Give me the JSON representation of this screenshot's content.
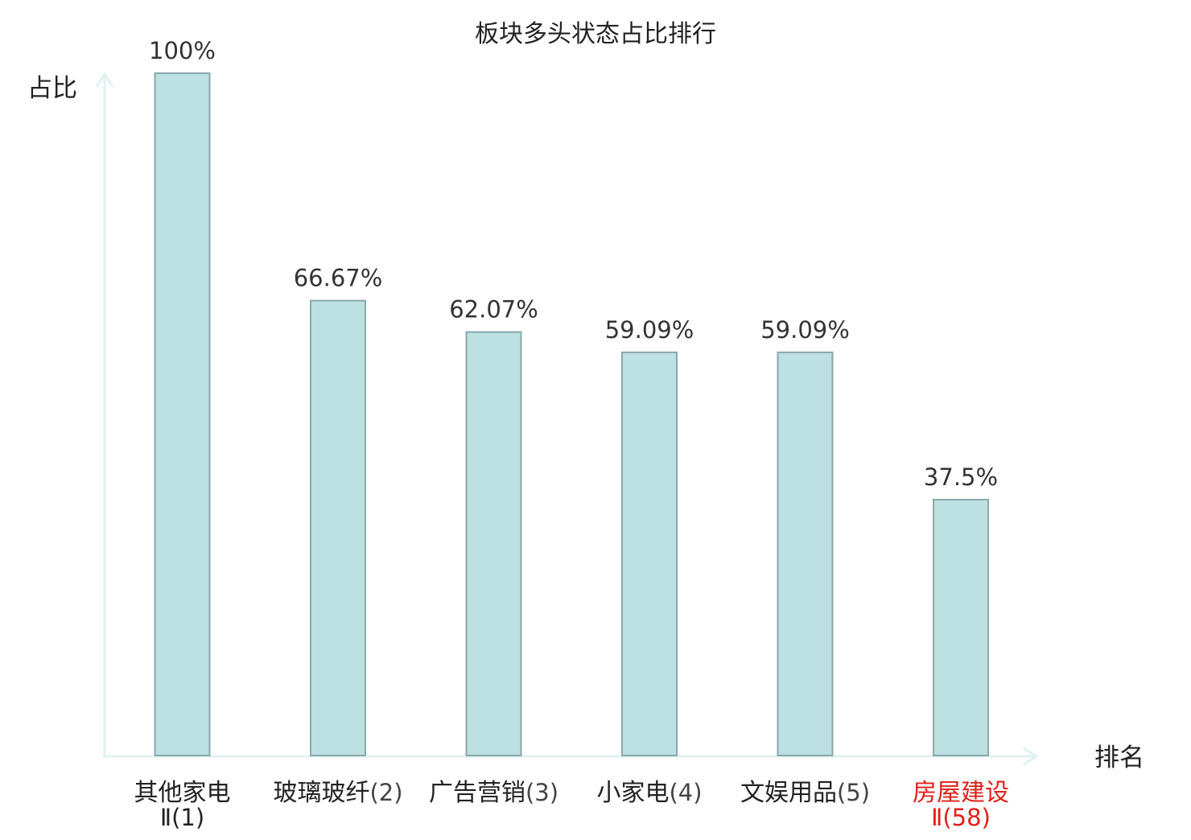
{
  "chart_data": {
    "type": "bar",
    "title": "板块多头状态占比排行",
    "ylabel": "占比",
    "xlabel": "排名",
    "ylim": [
      0,
      100
    ],
    "grid": false,
    "categories": [
      {
        "name": "其他家电",
        "rank": "Ⅱ(1)",
        "highlight": false
      },
      {
        "name": "玻璃玻纤",
        "rank": "(2)",
        "highlight": false
      },
      {
        "name": "广告营销",
        "rank": "(3)",
        "highlight": false
      },
      {
        "name": "小家电",
        "rank": "(4)",
        "highlight": false
      },
      {
        "name": "文娱用品",
        "rank": "(5)",
        "highlight": false
      },
      {
        "name": "房屋建设",
        "rank": "Ⅱ(58)",
        "highlight": true
      }
    ],
    "values": [
      100,
      66.67,
      62.07,
      59.09,
      59.09,
      37.5
    ],
    "value_labels": [
      "100%",
      "66.67%",
      "62.07%",
      "59.09%",
      "59.09%",
      "37.5%"
    ]
  },
  "colors": {
    "bar_fill": "#bde0e2",
    "bar_stroke": "#8aa8ab",
    "axis": "#dff2ef",
    "text": "#222222",
    "value_text": "#333333",
    "highlight": "#e0201a"
  }
}
